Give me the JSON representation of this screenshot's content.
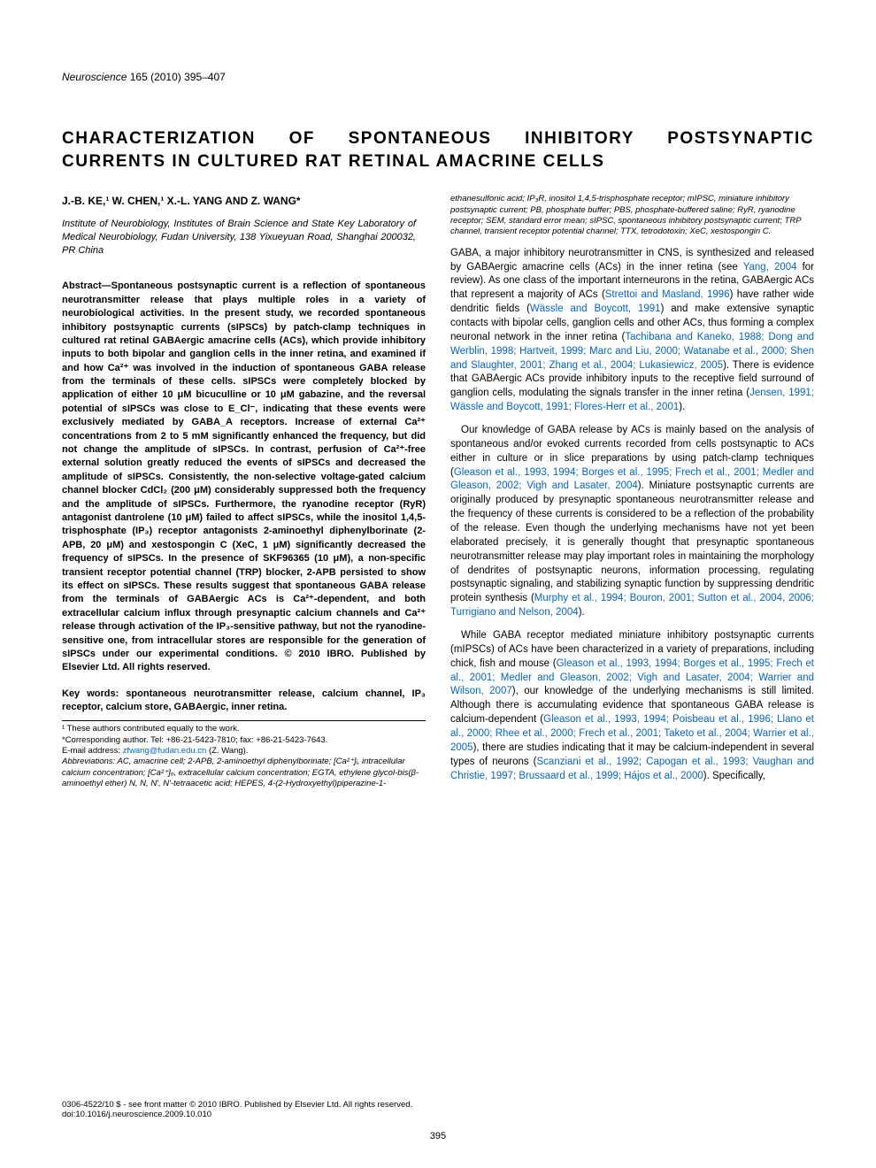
{
  "journal": {
    "name": "Neuroscience",
    "vol": "165 (2010) 395–407"
  },
  "title": "CHARACTERIZATION OF SPONTANEOUS INHIBITORY POSTSYNAPTIC CURRENTS IN CULTURED RAT RETINAL AMACRINE CELLS",
  "authors": "J.-B. KE,¹ W. CHEN,¹ X.-L. YANG AND Z. WANG*",
  "affiliation": "Institute of Neurobiology, Institutes of Brain Science and State Key Laboratory of Medical Neurobiology, Fudan University, 138 Yixueyuan Road, Shanghai 200032, PR China",
  "abstract": "Abstract—Spontaneous postsynaptic current is a reflection of spontaneous neurotransmitter release that plays multiple roles in a variety of neurobiological activities. In the present study, we recorded spontaneous inhibitory postsynaptic currents (sIPSCs) by patch-clamp techniques in cultured rat retinal GABAergic amacrine cells (ACs), which provide inhibitory inputs to both bipolar and ganglion cells in the inner retina, and examined if and how Ca²⁺ was involved in the induction of spontaneous GABA release from the terminals of these cells. sIPSCs were completely blocked by application of either 10 μM bicuculline or 10 μM gabazine, and the reversal potential of sIPSCs was close to E_Cl⁻, indicating that these events were exclusively mediated by GABA_A receptors. Increase of external Ca²⁺ concentrations from 2 to 5 mM significantly enhanced the frequency, but did not change the amplitude of sIPSCs. In contrast, perfusion of Ca²⁺-free external solution greatly reduced the events of sIPSCs and decreased the amplitude of sIPSCs. Consistently, the non-selective voltage-gated calcium channel blocker CdCl₂ (200 μM) considerably suppressed both the frequency and the amplitude of sIPSCs. Furthermore, the ryanodine receptor (RyR) antagonist dantrolene (10 μM) failed to affect sIPSCs, while the inositol 1,4,5-trisphosphate (IP₃) receptor antagonists 2-aminoethyl diphenylborinate (2-APB, 20 μM) and xestospongin C (XeC, 1 μM) significantly decreased the frequency of sIPSCs. In the presence of SKF96365 (10 μM), a non-specific transient receptor potential channel (TRP) blocker, 2-APB persisted to show its effect on sIPSCs. These results suggest that spontaneous GABA release from the terminals of GABAergic ACs is Ca²⁺-dependent, and both extracellular calcium influx through presynaptic calcium channels and Ca²⁺ release through activation of the IP₃-sensitive pathway, but not the ryanodine-sensitive one, from intracellular stores are responsible for the generation of sIPSCs under our experimental conditions. © 2010 IBRO. Published by Elsevier Ltd. All rights reserved.",
  "keywords": "Key words: spontaneous neurotransmitter release, calcium channel, IP₃ receptor, calcium store, GABAergic, inner retina.",
  "footnotes": {
    "equal": "¹ These authors contributed equally to the work.",
    "corr": "*Corresponding author. Tel: +86-21-5423-7810; fax: +86-21-5423-7643.",
    "email_label": "E-mail address: ",
    "email": "zfwang@fudan.edu.cn",
    "email_who": " (Z. Wang).",
    "abbrev": "Abbreviations: AC, amacrine cell; 2-APB, 2-aminoethyl diphenylborinate; [Ca²⁺]ᵢ, intracellular calcium concentration; [Ca²⁺]ₒ, extracellular calcium concentration; EGTA, ethylene glycol-bis(β-aminoethyl ether) N, N, N', N'-tetraacetic acid; HEPES, 4-(2-Hydroxyethyl)piperazine-1-ethanesulfonic acid; IP₃R, inositol 1,4,5-trisphosphate receptor; mIPSC, miniature inhibitory postsynaptic current; PB, phosphate buffer; PBS, phosphate-buffered saline; RyR, ryanodine receptor; SEM, standard error mean; sIPSC, spontaneous inhibitory postsynaptic current; TRP channel, transient receptor potential channel; TTX, tetrodotoxin; XeC, xestospongin C."
  },
  "body": {
    "p1a": "GABA, a major inhibitory neurotransmitter in CNS, is synthesized and released by GABAergic amacrine cells (ACs) in the inner retina (see ",
    "p1c1": "Yang, 2004",
    "p1b": " for review). As one class of the important interneurons in the retina, GABAergic ACs that represent a majority of ACs (",
    "p1c2": "Strettoi and Masland, 1996",
    "p1c": ") have rather wide dendritic fields (",
    "p1c3": "Wässle and Boycott, 1991",
    "p1d": ") and make extensive synaptic contacts with bipolar cells, ganglion cells and other ACs, thus forming a complex neuronal network in the inner retina (",
    "p1c4": "Tachibana and Kaneko, 1988; Dong and Werblin, 1998; Hartveit, 1999; Marc and Liu, 2000; Watanabe et al., 2000; Shen and Slaughter, 2001; Zhang et al., 2004; Lukasiewicz, 2005",
    "p1e": "). There is evidence that GABAergic ACs provide inhibitory inputs to the receptive field surround of ganglion cells, modulating the signals transfer in the inner retina (",
    "p1c5": "Jensen, 1991; Wässle and Boycott, 1991; Flores-Herr et al., 2001",
    "p1f": ").",
    "p2a": "Our knowledge of GABA release by ACs is mainly based on the analysis of spontaneous and/or evoked currents recorded from cells postsynaptic to ACs either in culture or in slice preparations by using patch-clamp techniques (",
    "p2c1": "Gleason et al., 1993, 1994; Borges et al., 1995; Frech et al., 2001; Medler and Gleason, 2002; Vigh and Lasater, 2004",
    "p2b": "). Miniature postsynaptic currents are originally produced by presynaptic spontaneous neurotransmitter release and the frequency of these currents is considered to be a reflection of the probability of the release. Even though the underlying mechanisms have not yet been elaborated precisely, it is generally thought that presynaptic spontaneous neurotransmitter release may play important roles in maintaining the morphology of dendrites of postsynaptic neurons, information processing, regulating postsynaptic signaling, and stabilizing synaptic function by suppressing dendritic protein synthesis (",
    "p2c2": "Murphy et al., 1994; Bouron, 2001; Sutton et al., 2004, 2006; Turrigiano and Nelson, 2004",
    "p2c": ").",
    "p3a": "While GABA receptor mediated miniature inhibitory postsynaptic currents (mIPSCs) of ACs have been characterized in a variety of preparations, including chick, fish and mouse (",
    "p3c1": "Gleason et al., 1993, 1994; Borges et al., 1995; Frech et al., 2001; Medler and Gleason, 2002; Vigh and Lasater, 2004; Warrier and Wilson, 2007",
    "p3b": "), our knowledge of the underlying mechanisms is still limited. Although there is accumulating evidence that spontaneous GABA release is calcium-dependent (",
    "p3c2": "Gleason et al., 1993, 1994; Poisbeau et al., 1996; Llano et al., 2000; Rhee et al., 2000; Frech et al., 2001; Taketo et al., 2004; Warrier et al., 2005",
    "p3c": "), there are studies indicating that it may be calcium-independent in several types of neurons (",
    "p3c3": "Scanziani et al., 1992; Capogan et al., 1993; Vaughan and Christie, 1997; Brussaard et al., 1999; Hájos et al., 2000",
    "p3d": "). Specifically,"
  },
  "bottom": {
    "copyright": "0306-4522/10 $ - see front matter © 2010 IBRO. Published by Elsevier Ltd. All rights reserved.",
    "doi": "doi:10.1016/j.neuroscience.2009.10.010"
  },
  "page": "395"
}
